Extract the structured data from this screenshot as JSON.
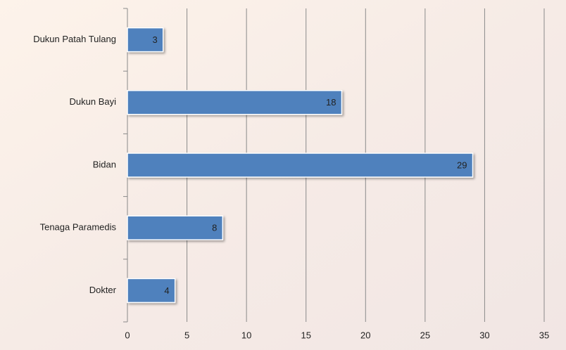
{
  "chart_data": {
    "type": "hbar",
    "categories": [
      "Dukun Patah Tulang",
      "Dukun Bayi",
      "Bidan",
      "Tenaga Paramedis",
      "Dokter"
    ],
    "values": [
      3,
      18,
      29,
      8,
      4
    ],
    "color": "#4f81bd",
    "xlim": [
      0,
      35
    ],
    "xticks": [
      0,
      5,
      10,
      15,
      20,
      25,
      30,
      35
    ],
    "grid": true
  }
}
